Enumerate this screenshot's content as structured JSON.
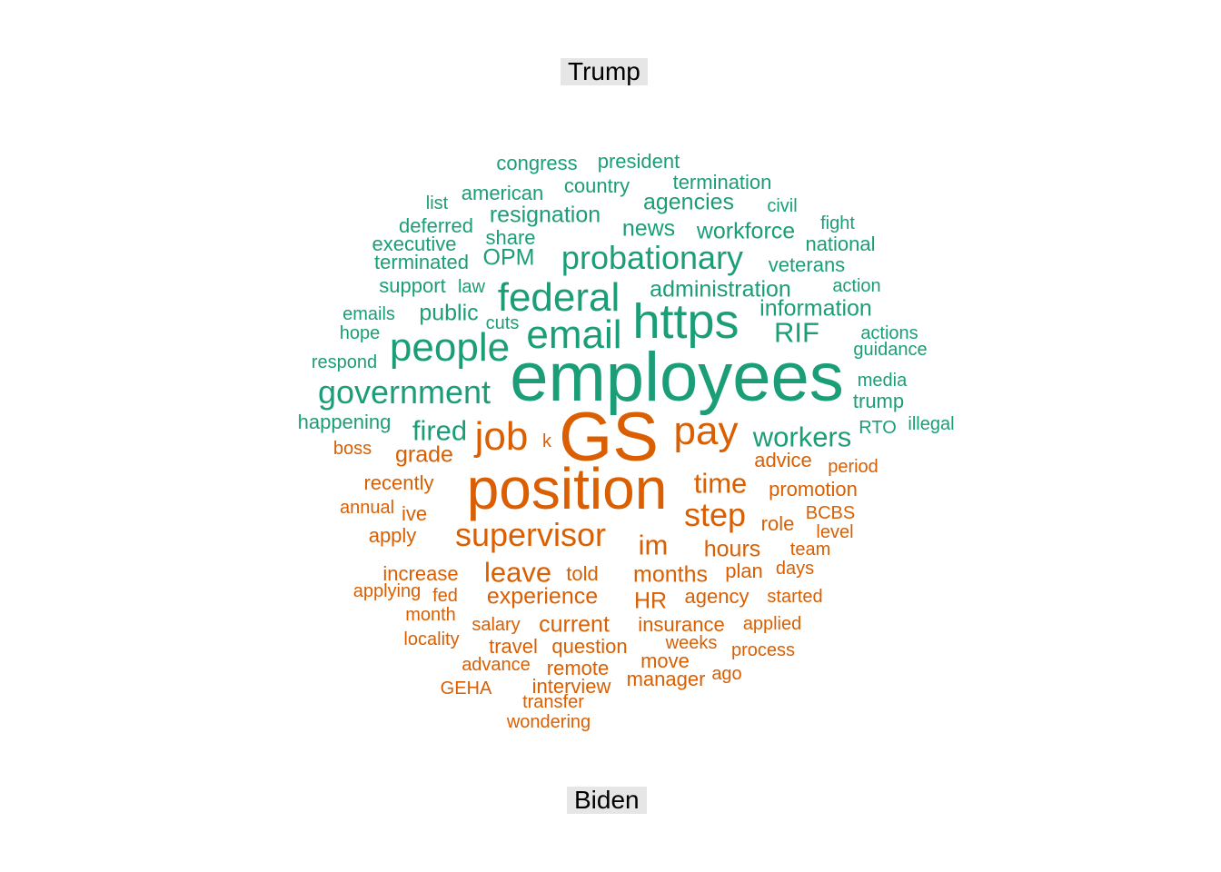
{
  "chart_data": {
    "type": "wordcloud",
    "title": "",
    "groups": [
      {
        "name": "Trump",
        "color": "#1b9e77",
        "words": [
          {
            "text": "employees",
            "size": 10
          },
          {
            "text": "https",
            "size": 8
          },
          {
            "text": "federal",
            "size": 7
          },
          {
            "text": "email",
            "size": 7
          },
          {
            "text": "people",
            "size": 7
          },
          {
            "text": "probationary",
            "size": 6
          },
          {
            "text": "government",
            "size": 6
          },
          {
            "text": "RIF",
            "size": 5
          },
          {
            "text": "fired",
            "size": 5
          },
          {
            "text": "workers",
            "size": 5
          },
          {
            "text": "administration",
            "size": 4
          },
          {
            "text": "information",
            "size": 4
          },
          {
            "text": "resignation",
            "size": 4
          },
          {
            "text": "agencies",
            "size": 4
          },
          {
            "text": "news",
            "size": 4
          },
          {
            "text": "workforce",
            "size": 4
          },
          {
            "text": "OPM",
            "size": 4
          },
          {
            "text": "public",
            "size": 4
          },
          {
            "text": "country",
            "size": 3
          },
          {
            "text": "american",
            "size": 3
          },
          {
            "text": "termination",
            "size": 3
          },
          {
            "text": "congress",
            "size": 3
          },
          {
            "text": "president",
            "size": 3
          },
          {
            "text": "terminated",
            "size": 3
          },
          {
            "text": "deferred",
            "size": 3
          },
          {
            "text": "executive",
            "size": 3
          },
          {
            "text": "veterans",
            "size": 3
          },
          {
            "text": "national",
            "size": 3
          },
          {
            "text": "happening",
            "size": 3
          },
          {
            "text": "support",
            "size": 3
          },
          {
            "text": "trump",
            "size": 3
          },
          {
            "text": "share",
            "size": 3
          },
          {
            "text": "list",
            "size": 2
          },
          {
            "text": "civil",
            "size": 2
          },
          {
            "text": "fight",
            "size": 2
          },
          {
            "text": "law",
            "size": 2
          },
          {
            "text": "action",
            "size": 2
          },
          {
            "text": "emails",
            "size": 2
          },
          {
            "text": "cuts",
            "size": 2
          },
          {
            "text": "hope",
            "size": 2
          },
          {
            "text": "actions",
            "size": 2
          },
          {
            "text": "guidance",
            "size": 2
          },
          {
            "text": "respond",
            "size": 2
          },
          {
            "text": "media",
            "size": 2
          },
          {
            "text": "RTO",
            "size": 2
          },
          {
            "text": "illegal",
            "size": 2
          }
        ]
      },
      {
        "name": "Biden",
        "color": "#d95f02",
        "words": [
          {
            "text": "GS",
            "size": 10
          },
          {
            "text": "position",
            "size": 9
          },
          {
            "text": "pay",
            "size": 7
          },
          {
            "text": "job",
            "size": 7
          },
          {
            "text": "supervisor",
            "size": 6
          },
          {
            "text": "step",
            "size": 6
          },
          {
            "text": "time",
            "size": 5
          },
          {
            "text": "im",
            "size": 5
          },
          {
            "text": "leave",
            "size": 5
          },
          {
            "text": "experience",
            "size": 4
          },
          {
            "text": "months",
            "size": 4
          },
          {
            "text": "hours",
            "size": 4
          },
          {
            "text": "HR",
            "size": 4
          },
          {
            "text": "current",
            "size": 4
          },
          {
            "text": "grade",
            "size": 4
          },
          {
            "text": "recently",
            "size": 3
          },
          {
            "text": "advice",
            "size": 3
          },
          {
            "text": "promotion",
            "size": 3
          },
          {
            "text": "role",
            "size": 3
          },
          {
            "text": "agency",
            "size": 3
          },
          {
            "text": "plan",
            "size": 3
          },
          {
            "text": "insurance",
            "size": 3
          },
          {
            "text": "question",
            "size": 3
          },
          {
            "text": "told",
            "size": 3
          },
          {
            "text": "increase",
            "size": 3
          },
          {
            "text": "apply",
            "size": 3
          },
          {
            "text": "ive",
            "size": 3
          },
          {
            "text": "remote",
            "size": 3
          },
          {
            "text": "move",
            "size": 3
          },
          {
            "text": "travel",
            "size": 3
          },
          {
            "text": "interview",
            "size": 3
          },
          {
            "text": "manager",
            "size": 3
          },
          {
            "text": "period",
            "size": 2
          },
          {
            "text": "BCBS",
            "size": 2
          },
          {
            "text": "level",
            "size": 2
          },
          {
            "text": "team",
            "size": 2
          },
          {
            "text": "days",
            "size": 2
          },
          {
            "text": "started",
            "size": 2
          },
          {
            "text": "applied",
            "size": 2
          },
          {
            "text": "weeks",
            "size": 2
          },
          {
            "text": "process",
            "size": 2
          },
          {
            "text": "salary",
            "size": 2
          },
          {
            "text": "fed",
            "size": 2
          },
          {
            "text": "month",
            "size": 2
          },
          {
            "text": "locality",
            "size": 2
          },
          {
            "text": "advance",
            "size": 2
          },
          {
            "text": "ago",
            "size": 2
          },
          {
            "text": "GEHA",
            "size": 2
          },
          {
            "text": "transfer",
            "size": 2
          },
          {
            "text": "wondering",
            "size": 2
          },
          {
            "text": "annual",
            "size": 2
          },
          {
            "text": "applying",
            "size": 2
          },
          {
            "text": "boss",
            "size": 2
          },
          {
            "text": "k",
            "size": 2
          }
        ]
      }
    ]
  }
}
